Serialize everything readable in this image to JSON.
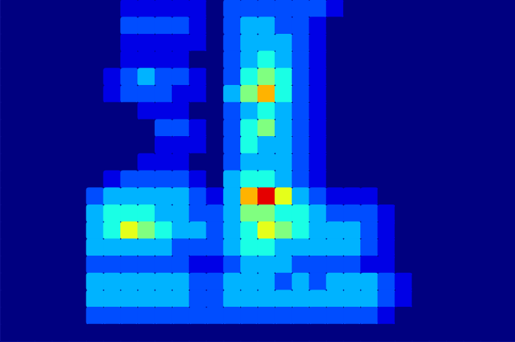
{
  "chart_data": {
    "type": "heatmap",
    "tick_labels": false,
    "xlim": [
      0,
      30
    ],
    "ylim": [
      0,
      20
    ],
    "zlim": [
      0,
      10
    ],
    "cells": [
      [
        0,
        0,
        0,
        0,
        0,
        0,
        0,
        1,
        1,
        1,
        1,
        1,
        0,
        2,
        2,
        2,
        2,
        2,
        2,
        1,
        0,
        0,
        0,
        0,
        0,
        0,
        0,
        0,
        0,
        0
      ],
      [
        0,
        0,
        0,
        0,
        0,
        0,
        0,
        2,
        2,
        2,
        2,
        1,
        0,
        2,
        3,
        3,
        2,
        2,
        1,
        0,
        0,
        0,
        0,
        0,
        0,
        0,
        0,
        0,
        0,
        0
      ],
      [
        0,
        0,
        0,
        0,
        0,
        0,
        0,
        1,
        1,
        1,
        1,
        1,
        0,
        2,
        3,
        3,
        3,
        2,
        1,
        0,
        0,
        0,
        0,
        0,
        0,
        0,
        0,
        0,
        0,
        0
      ],
      [
        0,
        0,
        0,
        0,
        0,
        0,
        0,
        1,
        1,
        1,
        1,
        0,
        0,
        2,
        3,
        4,
        3,
        2,
        1,
        0,
        0,
        0,
        0,
        0,
        0,
        0,
        0,
        0,
        0,
        0
      ],
      [
        0,
        0,
        0,
        0,
        0,
        0,
        1,
        2,
        3,
        2,
        2,
        1,
        0,
        2,
        4,
        5,
        4,
        2,
        1,
        0,
        0,
        0,
        0,
        0,
        0,
        0,
        0,
        0,
        0,
        0
      ],
      [
        0,
        0,
        0,
        0,
        0,
        0,
        1,
        2,
        2,
        2,
        1,
        1,
        0,
        3,
        5,
        7,
        4,
        2,
        1,
        0,
        0,
        0,
        0,
        0,
        0,
        0,
        0,
        0,
        0,
        0
      ],
      [
        0,
        0,
        0,
        0,
        0,
        0,
        0,
        0,
        1,
        1,
        1,
        0,
        0,
        2,
        3,
        4,
        3,
        2,
        1,
        0,
        0,
        0,
        0,
        0,
        0,
        0,
        0,
        0,
        0,
        0
      ],
      [
        0,
        0,
        0,
        0,
        0,
        0,
        0,
        0,
        0,
        2,
        2,
        1,
        0,
        2,
        4,
        5,
        3,
        2,
        1,
        0,
        0,
        0,
        0,
        0,
        0,
        0,
        0,
        0,
        0,
        0
      ],
      [
        0,
        0,
        0,
        0,
        0,
        0,
        0,
        0,
        0,
        1,
        1,
        1,
        0,
        2,
        4,
        3,
        3,
        2,
        1,
        0,
        0,
        0,
        0,
        0,
        0,
        0,
        0,
        0,
        0,
        0
      ],
      [
        0,
        0,
        0,
        0,
        0,
        0,
        0,
        0,
        1,
        1,
        1,
        0,
        0,
        2,
        3,
        3,
        3,
        2,
        1,
        0,
        0,
        0,
        0,
        0,
        0,
        0,
        0,
        0,
        0,
        0
      ],
      [
        0,
        0,
        0,
        0,
        0,
        0,
        1,
        2,
        2,
        2,
        2,
        1,
        0,
        3,
        4,
        4,
        3,
        2,
        1,
        0,
        0,
        0,
        0,
        0,
        0,
        0,
        0,
        0,
        0,
        0
      ],
      [
        0,
        0,
        0,
        0,
        0,
        2,
        3,
        3,
        3,
        3,
        3,
        2,
        1,
        3,
        7,
        9,
        6,
        3,
        2,
        1,
        1,
        1,
        0,
        0,
        0,
        0,
        0,
        0,
        0,
        0
      ],
      [
        0,
        0,
        0,
        0,
        0,
        3,
        4,
        4,
        4,
        3,
        3,
        2,
        2,
        3,
        5,
        5,
        4,
        4,
        3,
        2,
        2,
        2,
        1,
        0,
        0,
        0,
        0,
        0,
        0,
        0
      ],
      [
        0,
        0,
        0,
        0,
        0,
        3,
        4,
        6,
        5,
        4,
        3,
        3,
        2,
        3,
        4,
        6,
        5,
        4,
        3,
        3,
        3,
        2,
        1,
        0,
        0,
        0,
        0,
        0,
        0,
        0
      ],
      [
        0,
        0,
        0,
        0,
        0,
        3,
        3,
        3,
        3,
        3,
        2,
        2,
        2,
        3,
        4,
        4,
        3,
        3,
        3,
        3,
        3,
        2,
        1,
        0,
        0,
        0,
        0,
        0,
        0,
        0
      ],
      [
        0,
        0,
        0,
        0,
        0,
        2,
        2,
        2,
        2,
        2,
        2,
        1,
        1,
        2,
        3,
        3,
        3,
        2,
        2,
        2,
        2,
        1,
        1,
        0,
        0,
        0,
        0,
        0,
        0,
        0
      ],
      [
        0,
        0,
        0,
        0,
        0,
        3,
        3,
        3,
        3,
        3,
        3,
        2,
        2,
        3,
        3,
        3,
        2,
        3,
        2,
        3,
        3,
        3,
        2,
        1,
        0,
        0,
        0,
        0,
        0,
        0
      ],
      [
        0,
        0,
        0,
        0,
        0,
        3,
        3,
        3,
        3,
        3,
        3,
        2,
        2,
        3,
        3,
        3,
        3,
        3,
        3,
        3,
        3,
        3,
        2,
        1,
        0,
        0,
        0,
        0,
        0,
        0
      ],
      [
        0,
        0,
        0,
        0,
        0,
        2,
        2,
        2,
        2,
        2,
        2,
        2,
        2,
        2,
        2,
        2,
        2,
        2,
        2,
        2,
        2,
        2,
        1,
        0,
        0,
        0,
        0,
        0,
        0,
        0
      ],
      [
        0,
        0,
        0,
        0,
        0,
        0,
        0,
        0,
        0,
        0,
        0,
        0,
        0,
        0,
        0,
        0,
        0,
        0,
        0,
        0,
        0,
        0,
        0,
        0,
        0,
        0,
        0,
        0,
        0,
        0
      ]
    ]
  }
}
